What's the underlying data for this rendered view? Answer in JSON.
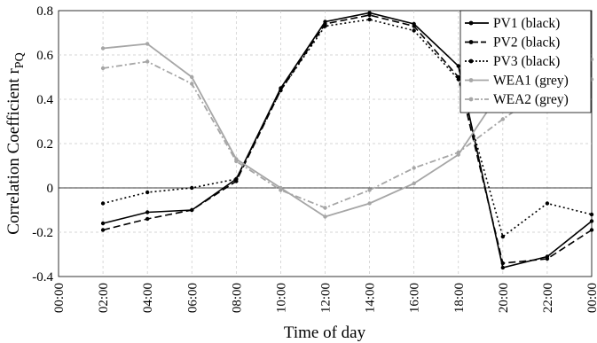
{
  "chart_data": {
    "type": "line",
    "xlabel": "Time of day",
    "ylabel": "Correlation Coefficient r",
    "ylabel_subscript": "PQ",
    "x_ticks": [
      "00:00",
      "02:00",
      "04:00",
      "06:00",
      "08:00",
      "10:00",
      "12:00",
      "14:00",
      "16:00",
      "18:00",
      "20:00",
      "22:00",
      "00:00"
    ],
    "y_ticks": [
      "-0.4",
      "-0.2",
      "0",
      "0.2",
      "0.4",
      "0.6",
      "0.8"
    ],
    "ylim": [
      -0.4,
      0.8
    ],
    "xlim": [
      0,
      24
    ],
    "grid": true,
    "zero_line": true,
    "legend_position": "top-right",
    "series": [
      {
        "name": "PV1 (black)",
        "color": "#000000",
        "dash": "solid",
        "marker": "dot",
        "x": [
          2,
          4,
          6,
          8,
          10,
          12,
          14,
          16,
          18,
          20,
          22,
          24
        ],
        "y": [
          -0.16,
          -0.11,
          -0.1,
          0.04,
          0.45,
          0.75,
          0.79,
          0.74,
          0.55,
          -0.36,
          -0.31,
          -0.15
        ]
      },
      {
        "name": "PV2 (black)",
        "color": "#000000",
        "dash": "dashed",
        "marker": "dot",
        "x": [
          2,
          4,
          6,
          8,
          10,
          12,
          14,
          16,
          18,
          20,
          22,
          24
        ],
        "y": [
          -0.19,
          -0.14,
          -0.1,
          0.03,
          0.44,
          0.74,
          0.78,
          0.73,
          0.5,
          -0.34,
          -0.32,
          -0.19
        ]
      },
      {
        "name": "PV3 (black)",
        "color": "#000000",
        "dash": "dotted",
        "marker": "dot",
        "x": [
          2,
          4,
          6,
          8,
          10,
          12,
          14,
          16,
          18,
          20,
          22,
          24
        ],
        "y": [
          -0.07,
          -0.02,
          0.0,
          0.04,
          0.44,
          0.73,
          0.76,
          0.71,
          0.49,
          -0.22,
          -0.07,
          -0.12
        ]
      },
      {
        "name": "WEA1 (grey)",
        "color": "#a6a6a6",
        "dash": "solid",
        "marker": "dot",
        "x": [
          2,
          4,
          6,
          8,
          10,
          12,
          14,
          16,
          18,
          20,
          22,
          24
        ],
        "y": [
          0.63,
          0.65,
          0.5,
          0.13,
          0.0,
          -0.13,
          -0.07,
          0.02,
          0.15,
          0.45,
          0.6,
          0.58
        ]
      },
      {
        "name": "WEA2 (grey)",
        "color": "#a6a6a6",
        "dash": "dashdot",
        "marker": "dot",
        "x": [
          2,
          4,
          6,
          8,
          10,
          12,
          14,
          16,
          18,
          20,
          22,
          24
        ],
        "y": [
          0.54,
          0.57,
          0.47,
          0.12,
          -0.01,
          -0.09,
          -0.01,
          0.09,
          0.16,
          0.31,
          0.45,
          0.49
        ]
      }
    ]
  }
}
